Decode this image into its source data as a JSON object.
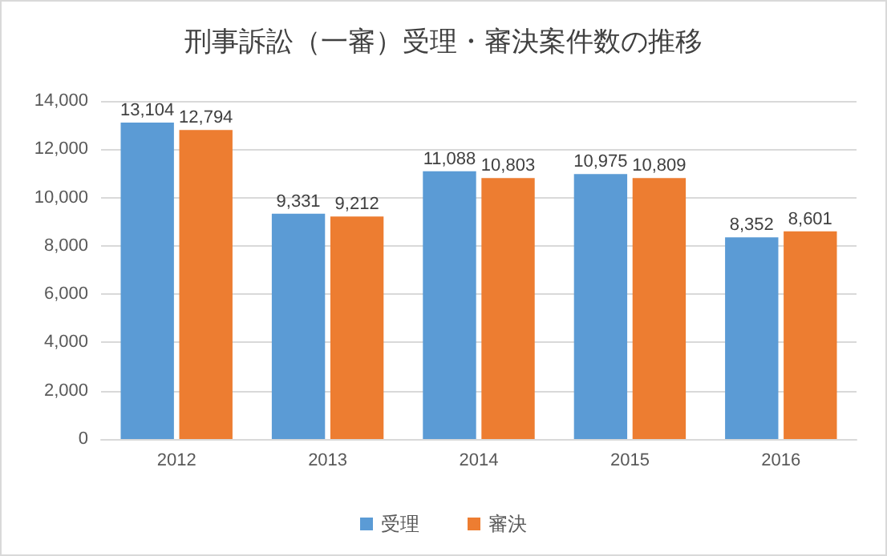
{
  "chart_data": {
    "type": "bar",
    "title": "刑事訴訟（一審）受理・審決案件数の推移",
    "categories": [
      "2012",
      "2013",
      "2014",
      "2015",
      "2016"
    ],
    "series": [
      {
        "name": "受理",
        "color": "#5b9bd5",
        "values": [
          13104,
          9331,
          11088,
          10975,
          8352
        ],
        "value_labels": [
          "13,104",
          "9,331",
          "11,088",
          "10,975",
          "8,352"
        ]
      },
      {
        "name": "審決",
        "color": "#ed7d31",
        "values": [
          12794,
          9212,
          10803,
          10809,
          8601
        ],
        "value_labels": [
          "12,794",
          "9,212",
          "10,803",
          "10,809",
          "8,601"
        ]
      }
    ],
    "ylim": [
      0,
      14000
    ],
    "yticks": [
      {
        "value": 0,
        "label": "0"
      },
      {
        "value": 2000,
        "label": "2,000"
      },
      {
        "value": 4000,
        "label": "4,000"
      },
      {
        "value": 6000,
        "label": "6,000"
      },
      {
        "value": 8000,
        "label": "8,000"
      },
      {
        "value": 10000,
        "label": "10,000"
      },
      {
        "value": 12000,
        "label": "12,000"
      },
      {
        "value": 14000,
        "label": "14,000"
      }
    ],
    "grid": "y",
    "legend": "bottom"
  }
}
